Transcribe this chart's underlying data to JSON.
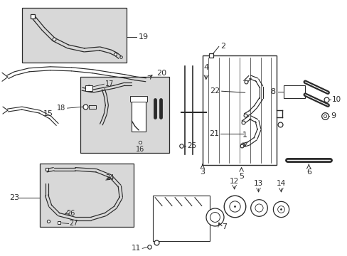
{
  "bg_color": "#ffffff",
  "line_color": "#2a2a2a",
  "box_fill": "#d8d8d8",
  "label_color": "#111111",
  "figsize": [
    4.89,
    3.6
  ],
  "dpi": 100
}
